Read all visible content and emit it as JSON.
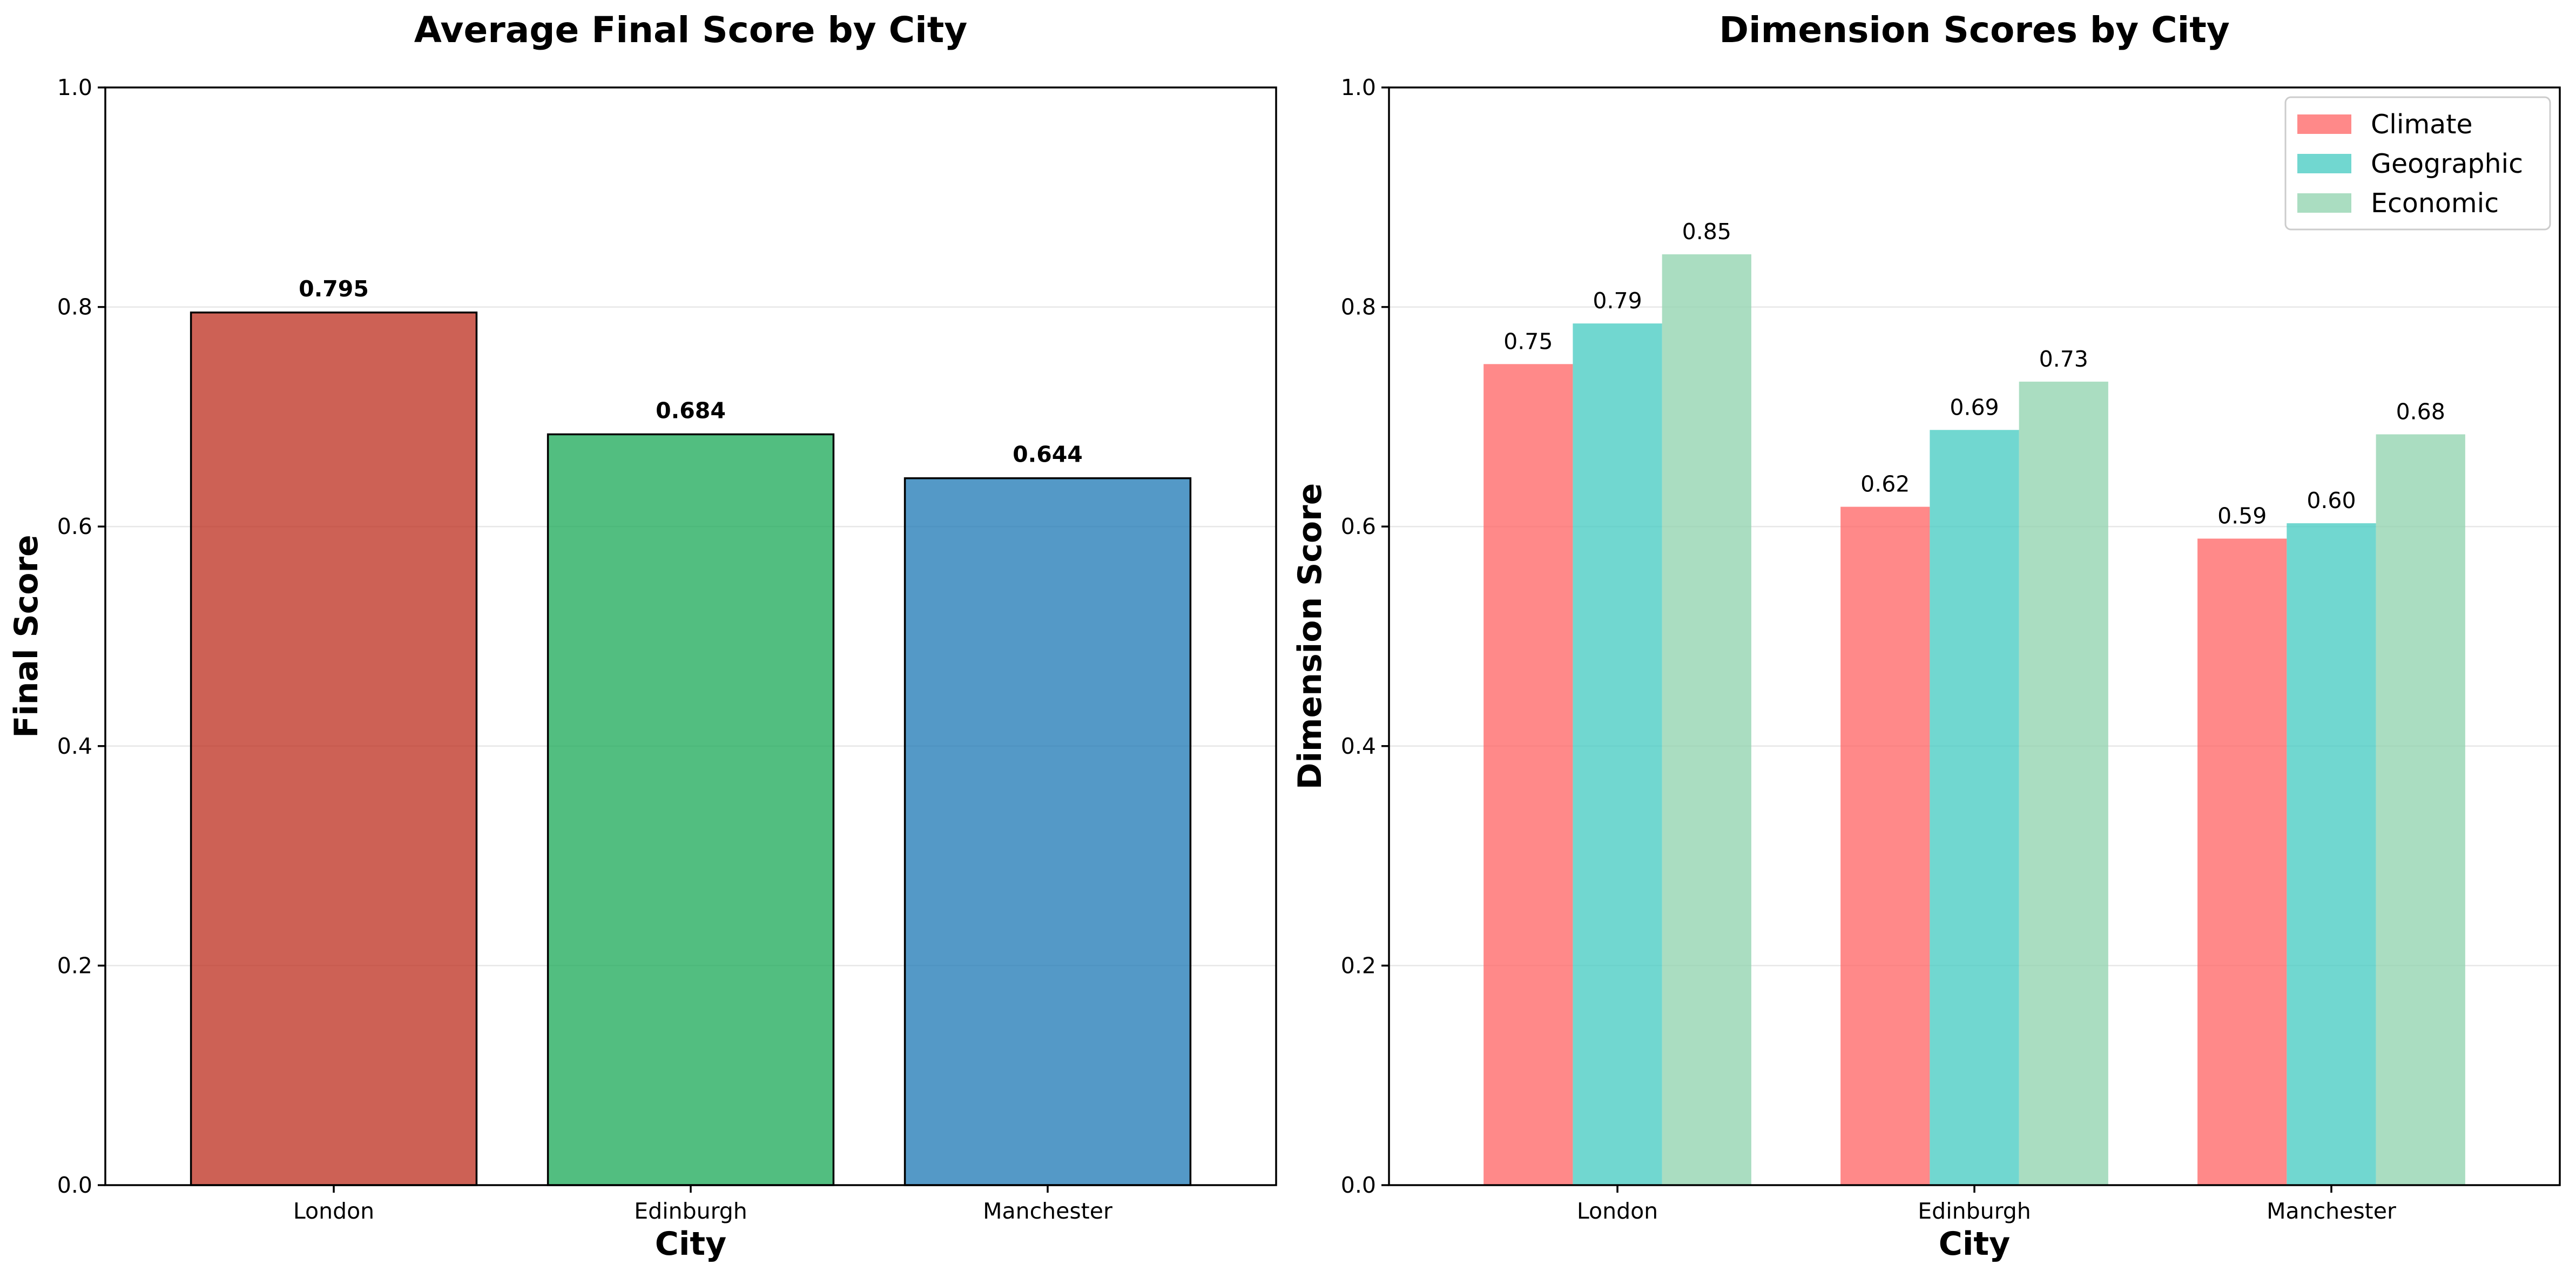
{
  "chart_data": [
    {
      "type": "bar",
      "title": "Average Final Score by City",
      "xlabel": "City",
      "ylabel": "Final Score",
      "categories": [
        "London",
        "Edinburgh",
        "Manchester"
      ],
      "values": [
        0.795,
        0.684,
        0.644
      ],
      "value_labels": [
        "0.795",
        "0.684",
        "0.644"
      ],
      "colors": [
        "#c0392b",
        "#27ae60",
        "#2980b9"
      ],
      "ylim": [
        0,
        1.0
      ],
      "yticks": [
        0.0,
        0.2,
        0.4,
        0.6,
        0.8,
        1.0
      ],
      "ytick_labels": [
        "0.0",
        "0.2",
        "0.4",
        "0.6",
        "0.8",
        "1.0"
      ],
      "grid": "y",
      "legend": "none"
    },
    {
      "type": "bar",
      "title": "Dimension Scores by City",
      "xlabel": "City",
      "ylabel": "Dimension Score",
      "categories": [
        "London",
        "Edinburgh",
        "Manchester"
      ],
      "series": [
        {
          "name": "Climate",
          "color": "#ff6b6b",
          "values": [
            0.748,
            0.618,
            0.589
          ],
          "value_labels": [
            "0.75",
            "0.62",
            "0.59"
          ]
        },
        {
          "name": "Geographic",
          "color": "#4ecdc4",
          "values": [
            0.785,
            0.688,
            0.603
          ],
          "value_labels": [
            "0.79",
            "0.69",
            "0.60"
          ]
        },
        {
          "name": "Economic",
          "color": "#95d5b2",
          "values": [
            0.848,
            0.732,
            0.684
          ],
          "value_labels": [
            "0.85",
            "0.73",
            "0.68"
          ]
        }
      ],
      "ylim": [
        0,
        1.0
      ],
      "yticks": [
        0.0,
        0.2,
        0.4,
        0.6,
        0.8,
        1.0
      ],
      "ytick_labels": [
        "0.0",
        "0.2",
        "0.4",
        "0.6",
        "0.8",
        "1.0"
      ],
      "grid": "y",
      "legend": "top-right"
    }
  ]
}
